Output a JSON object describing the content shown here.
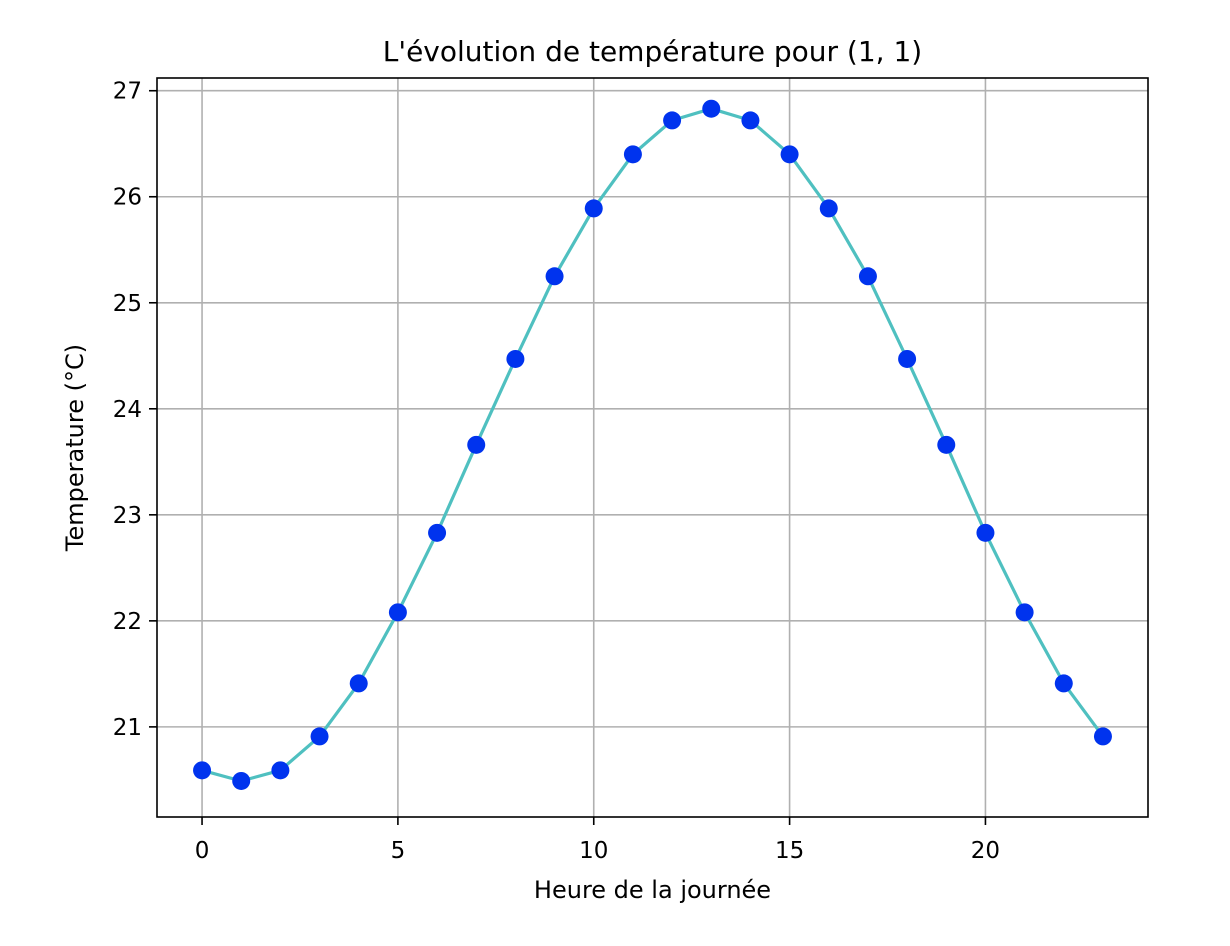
{
  "chart_data": {
    "type": "line",
    "title": "L'évolution de température pour (1, 1)",
    "xlabel": "Heure de la journée",
    "ylabel": "Temperature (°C)",
    "xlim": [
      -1.15,
      24.15
    ],
    "ylim": [
      20.15,
      27.12
    ],
    "xticks": [
      0,
      5,
      10,
      15,
      20
    ],
    "yticks": [
      21,
      22,
      23,
      24,
      25,
      26,
      27
    ],
    "grid": true,
    "line_color": "#4fc0c0",
    "marker_color": "#0033ee",
    "series": [
      {
        "x": [
          0,
          1,
          2,
          3,
          4,
          5,
          6,
          7,
          8,
          9,
          10,
          11,
          12,
          13,
          14,
          15,
          16,
          17,
          18,
          19,
          20,
          21,
          22,
          23
        ],
        "values": [
          20.59,
          20.49,
          20.59,
          20.91,
          21.41,
          22.08,
          22.83,
          23.66,
          24.47,
          25.25,
          25.89,
          26.4,
          26.72,
          26.83,
          26.72,
          26.4,
          25.89,
          25.25,
          24.47,
          23.66,
          22.83,
          22.08,
          21.41,
          20.91
        ]
      }
    ]
  }
}
